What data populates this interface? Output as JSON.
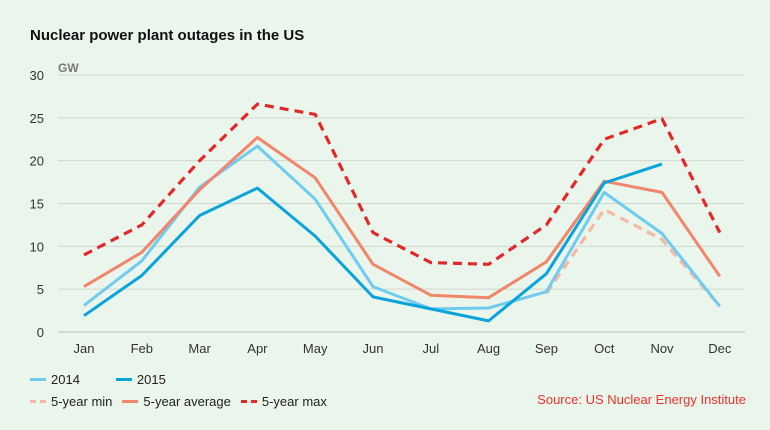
{
  "title": "Nuclear power plant outages in the US",
  "source": "Source: US Nuclear Energy Institute",
  "colors": {
    "background": "#eaf5ec",
    "y2014": "#6fcbef",
    "y2015": "#0aa4db",
    "min5": "#f3b9a2",
    "avg5": "#f0866a",
    "max5": "#e02a2a",
    "source": "#e8322c"
  },
  "chart_data": {
    "type": "line",
    "title": "Nuclear power plant outages in the US",
    "ylabel": "GW",
    "ylim": [
      0,
      30
    ],
    "yticks": [
      0,
      5,
      10,
      15,
      20,
      25,
      30
    ],
    "grid": true,
    "legend_position": "bottom-left",
    "categories": [
      "Jan",
      "Feb",
      "Mar",
      "Apr",
      "May",
      "Jun",
      "Jul",
      "Aug",
      "Sep",
      "Oct",
      "Nov",
      "Dec"
    ],
    "series": [
      {
        "name": "5-year min",
        "style": "dashed",
        "color": "#f3b9a2",
        "values": [
          null,
          null,
          null,
          null,
          null,
          null,
          null,
          null,
          4.5,
          14.3,
          10.8,
          3.0
        ]
      },
      {
        "name": "2014",
        "style": "solid",
        "color": "#6fcbef",
        "values": [
          3.1,
          8.3,
          16.9,
          21.7,
          15.5,
          5.3,
          2.7,
          2.8,
          4.7,
          16.3,
          11.5,
          3.0
        ]
      },
      {
        "name": "5-year average",
        "style": "solid",
        "color": "#f0866a",
        "values": [
          5.3,
          9.3,
          16.6,
          22.7,
          18.0,
          7.9,
          4.3,
          4.0,
          8.2,
          17.6,
          16.3,
          6.5
        ]
      },
      {
        "name": "2015",
        "style": "solid",
        "color": "#0aa4db",
        "values": [
          1.9,
          6.6,
          13.6,
          16.8,
          11.2,
          4.1,
          2.7,
          1.3,
          6.8,
          17.4,
          19.6,
          null
        ]
      },
      {
        "name": "5-year max",
        "style": "dashed",
        "color": "#e02a2a",
        "values": [
          9.0,
          12.5,
          20.0,
          26.6,
          25.4,
          11.6,
          8.1,
          7.9,
          12.5,
          22.5,
          24.9,
          11.6
        ]
      }
    ]
  },
  "legend": [
    [
      {
        "label": "2014",
        "key": "y2014"
      },
      {
        "label": "2015",
        "key": "y2015"
      }
    ],
    [
      {
        "label": "5-year min",
        "key": "min5"
      },
      {
        "label": "5-year average",
        "key": "avg5"
      },
      {
        "label": "5-year max",
        "key": "max5"
      }
    ]
  ]
}
